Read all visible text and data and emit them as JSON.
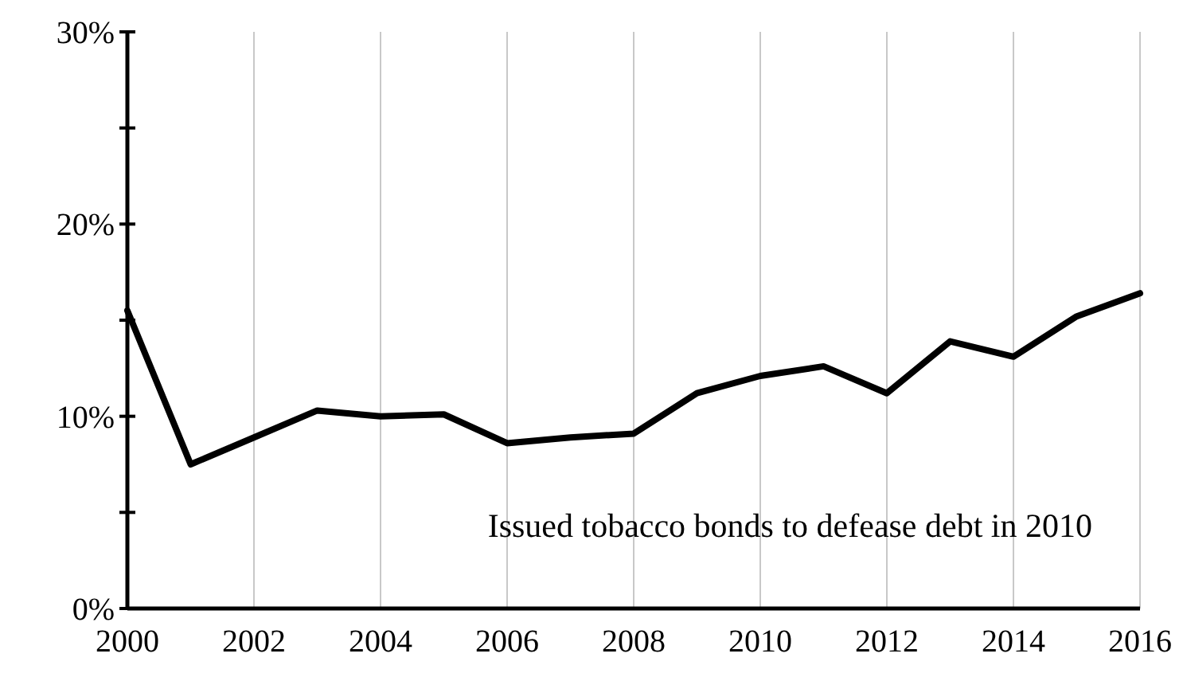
{
  "chart_data": {
    "type": "line",
    "x": [
      2000,
      2001,
      2002,
      2003,
      2004,
      2005,
      2006,
      2007,
      2008,
      2009,
      2010,
      2011,
      2012,
      2013,
      2014,
      2015,
      2016
    ],
    "series": [
      {
        "color": "#000000",
        "values": [
          15.5,
          7.5,
          8.9,
          10.3,
          10.0,
          10.1,
          8.6,
          8.9,
          9.1,
          11.2,
          12.1,
          12.6,
          11.2,
          13.9,
          13.1,
          15.2,
          16.4
        ]
      }
    ],
    "xlim": [
      2000,
      2016
    ],
    "xticks": [
      2000,
      2002,
      2004,
      2006,
      2008,
      2010,
      2012,
      2014,
      2016
    ],
    "ylim": [
      0,
      30
    ],
    "yticks": [
      {
        "value": 0,
        "label": "0%"
      },
      {
        "value": 5,
        "label": null
      },
      {
        "value": 10,
        "label": "10%"
      },
      {
        "value": 15,
        "label": null
      },
      {
        "value": 20,
        "label": "20%"
      },
      {
        "value": 25,
        "label": null
      },
      {
        "value": 30,
        "label": "30%"
      }
    ],
    "grid": "x",
    "marker": "none",
    "line_style": "solid",
    "annotations": [
      "Issued tobacco bonds to defease debt in 2010"
    ]
  }
}
